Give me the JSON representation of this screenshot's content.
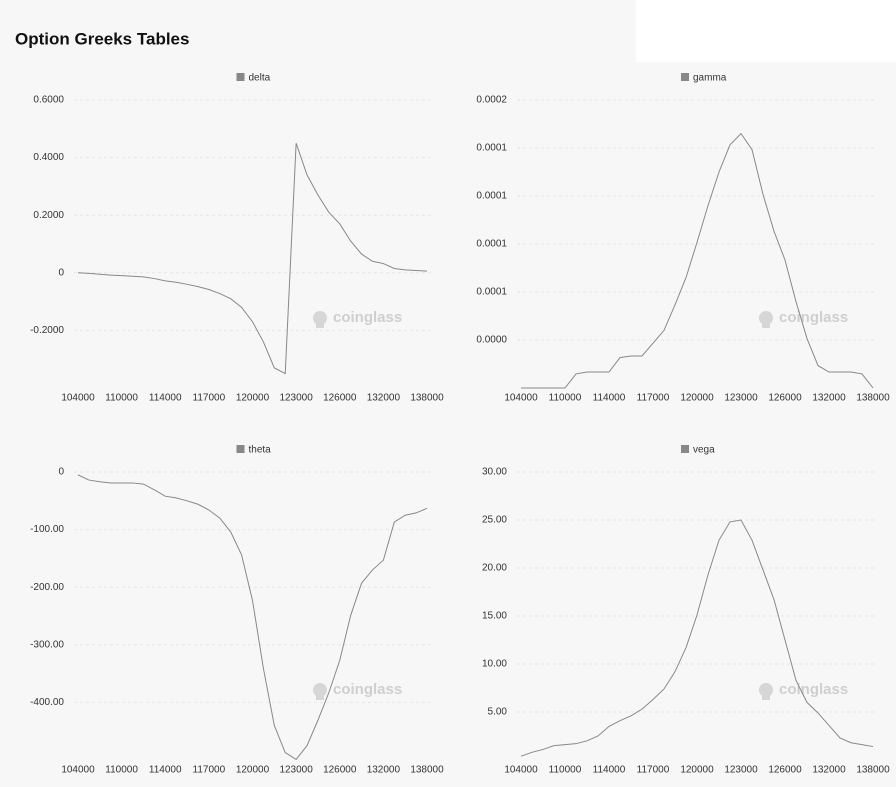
{
  "title": "Option Greeks Tables",
  "watermark": "coinglass",
  "chart_data": [
    {
      "type": "line",
      "categories": [
        104000,
        null,
        null,
        null,
        110000,
        null,
        null,
        null,
        114000,
        null,
        null,
        null,
        117000,
        null,
        null,
        null,
        120000,
        null,
        null,
        null,
        123000,
        null,
        null,
        null,
        126000,
        null,
        null,
        null,
        132000,
        null,
        null,
        null,
        138000
      ],
      "series": [
        {
          "name": "delta",
          "color": "#888888",
          "values": [
            0,
            -0.002,
            -0.005,
            -0.008,
            -0.01,
            -0.012,
            -0.014,
            -0.02,
            -0.028,
            -0.033,
            -0.04,
            -0.048,
            -0.058,
            -0.072,
            -0.09,
            -0.12,
            -0.17,
            -0.24,
            -0.33,
            -0.35,
            0.45,
            0.34,
            0.27,
            0.21,
            0.17,
            0.11,
            0.065,
            0.04,
            0.032,
            0.015,
            0.01,
            0.008,
            0.006
          ]
        }
      ],
      "ylim": [
        -0.4,
        0.6
      ],
      "yticks": [
        {
          "value": -0.2,
          "label": "-0.2000"
        },
        0,
        {
          "value": 0.2,
          "label": "0.2000"
        },
        {
          "value": 0.4,
          "label": "0.4000"
        },
        {
          "value": 0.6,
          "label": "0.6000"
        }
      ],
      "grid": true
    },
    {
      "type": "line",
      "categories": [
        104000,
        null,
        null,
        null,
        110000,
        null,
        null,
        null,
        114000,
        null,
        null,
        null,
        117000,
        null,
        null,
        null,
        120000,
        null,
        null,
        null,
        123000,
        null,
        null,
        null,
        126000,
        null,
        null,
        null,
        132000,
        null,
        null,
        null,
        138000
      ],
      "series": [
        {
          "name": "gamma",
          "color": "#888888",
          "values": [
            0,
            0,
            0,
            0,
            0,
            8.8e-06,
            1e-05,
            1e-05,
            1e-05,
            1.9e-05,
            2e-05,
            2e-05,
            2.8e-05,
            3.6e-05,
            5.2e-05,
            6.9e-05,
            9.1e-05,
            0.000114,
            0.000135,
            0.000152,
            0.000159,
            0.000149,
            0.000121,
            9.8e-05,
            8e-05,
            5.4e-05,
            3.1e-05,
            1.4e-05,
            1e-05,
            1e-05,
            1e-05,
            8.8e-06,
            0
          ]
        }
      ],
      "ylim": [
        0,
        0.00018
      ],
      "yticks": [
        {
          "value": 3e-05,
          "label": "0.0000"
        },
        {
          "value": 6e-05,
          "label": "0.0001"
        },
        {
          "value": 9e-05,
          "label": "0.0001"
        },
        {
          "value": 0.00012,
          "label": "0.0001"
        },
        {
          "value": 0.00015,
          "label": "0.0001"
        },
        {
          "value": 0.00018,
          "label": "0.0002"
        }
      ],
      "grid": true
    },
    {
      "type": "line",
      "categories": [
        104000,
        null,
        null,
        null,
        110000,
        null,
        null,
        null,
        114000,
        null,
        null,
        null,
        117000,
        null,
        null,
        null,
        120000,
        null,
        null,
        null,
        123000,
        null,
        null,
        null,
        126000,
        null,
        null,
        null,
        132000,
        null,
        null,
        null,
        138000
      ],
      "series": [
        {
          "name": "theta",
          "color": "#888888",
          "values": [
            -5,
            -14,
            -17,
            -19,
            -19,
            -19,
            -21,
            -31,
            -42,
            -45,
            -50,
            -56,
            -66,
            -80,
            -104,
            -144,
            -223,
            -341,
            -440,
            -487,
            -499,
            -475,
            -431,
            -383,
            -327,
            -249,
            -193,
            -170,
            -153,
            -87,
            -75,
            -71,
            -63
          ]
        }
      ],
      "ylim": [
        -500,
        0
      ],
      "yticks": [
        {
          "value": -400,
          "label": "-400.00"
        },
        {
          "value": -300,
          "label": "-300.00"
        },
        {
          "value": -200,
          "label": "-200.00"
        },
        {
          "value": -100,
          "label": "-100.00"
        },
        0
      ],
      "grid": true
    },
    {
      "type": "line",
      "categories": [
        104000,
        null,
        null,
        null,
        110000,
        null,
        null,
        null,
        114000,
        null,
        null,
        null,
        117000,
        null,
        null,
        null,
        120000,
        null,
        null,
        null,
        123000,
        null,
        null,
        null,
        126000,
        null,
        null,
        null,
        132000,
        null,
        null,
        null,
        138000
      ],
      "series": [
        {
          "name": "vega",
          "color": "#888888",
          "values": [
            0.4,
            0.8,
            1.1,
            1.5,
            1.6,
            1.7,
            2.0,
            2.5,
            3.5,
            4.1,
            4.6,
            5.3,
            6.3,
            7.4,
            9.2,
            11.7,
            15.1,
            19.3,
            22.9,
            24.8,
            25.0,
            22.9,
            19.8,
            16.7,
            12.5,
            8.3,
            6.0,
            4.9,
            3.6,
            2.3,
            1.8,
            1.6,
            1.4
          ]
        }
      ],
      "ylim": [
        0,
        30
      ],
      "yticks": [
        {
          "value": 5,
          "label": "5.00"
        },
        {
          "value": 10,
          "label": "10.00"
        },
        {
          "value": 15,
          "label": "15.00"
        },
        {
          "value": 20,
          "label": "20.00"
        },
        {
          "value": 25,
          "label": "25.00"
        },
        {
          "value": 30,
          "label": "30.00"
        }
      ],
      "grid": true
    }
  ]
}
